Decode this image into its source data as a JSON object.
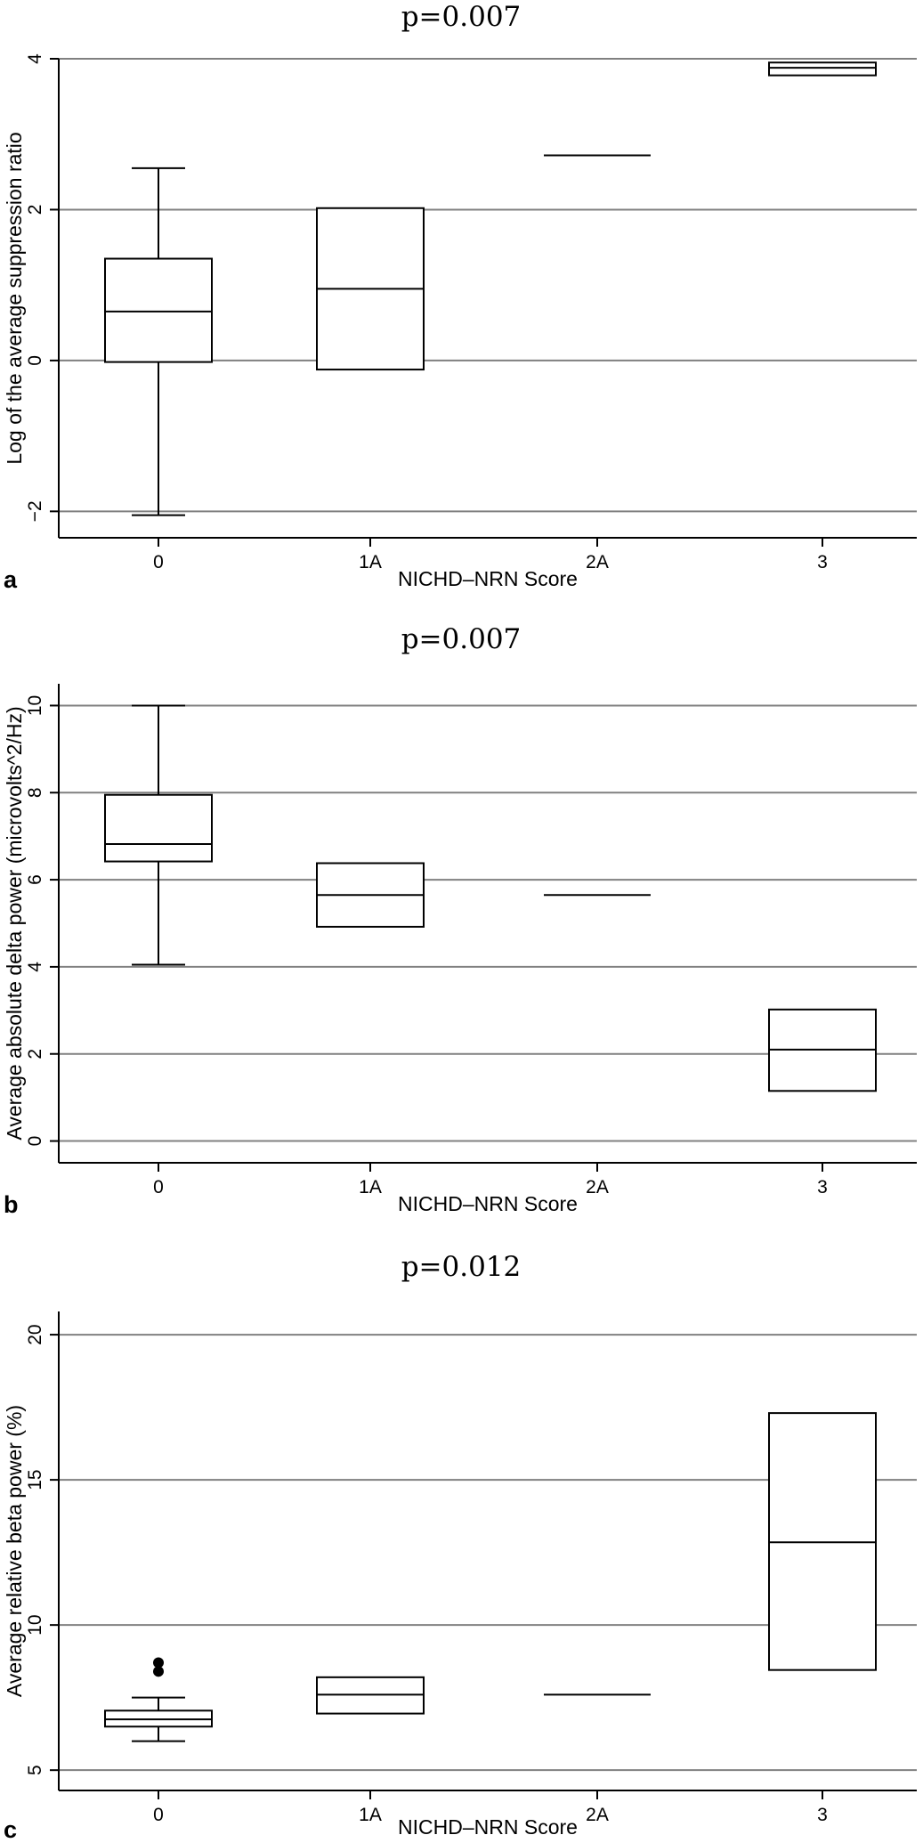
{
  "chart_data": [
    {
      "type": "box",
      "panel_label": "a",
      "title": "p=0.007",
      "xlabel": "NICHD–NRN Score",
      "ylabel": "Log of the average suppression ratio",
      "categories": [
        "0",
        "1A",
        "2A",
        "3"
      ],
      "ylim": [
        -2.35,
        4.0
      ],
      "yticks": [
        -2,
        0,
        2,
        4
      ],
      "ytick_labels": [
        "−2",
        "0",
        "2",
        "4"
      ],
      "grid": true,
      "boxes": [
        {
          "category": "0",
          "whisker_low": -2.05,
          "q1": -0.02,
          "median": 0.65,
          "q3": 1.35,
          "whisker_high": 2.55,
          "outliers": []
        },
        {
          "category": "1A",
          "whisker_low": -0.12,
          "q1": -0.12,
          "median": 0.95,
          "q3": 2.02,
          "whisker_high": 2.02,
          "outliers": []
        },
        {
          "category": "2A",
          "whisker_low": 2.72,
          "q1": 2.72,
          "median": 2.72,
          "q3": 2.72,
          "whisker_high": 2.72,
          "outliers": []
        },
        {
          "category": "3",
          "whisker_low": 3.78,
          "q1": 3.78,
          "median": 3.88,
          "q3": 3.95,
          "whisker_high": 3.95,
          "outliers": []
        }
      ]
    },
    {
      "type": "box",
      "panel_label": "b",
      "title": "p=0.007",
      "xlabel": "NICHD–NRN Score",
      "ylabel": "Average absolute delta power (microvolts^2/Hz)",
      "categories": [
        "0",
        "1A",
        "2A",
        "3"
      ],
      "ylim": [
        -0.5,
        10.5
      ],
      "yticks": [
        0,
        2,
        4,
        6,
        8,
        10
      ],
      "ytick_labels": [
        "0",
        "2",
        "4",
        "6",
        "8",
        "10"
      ],
      "grid": true,
      "boxes": [
        {
          "category": "0",
          "whisker_low": 4.05,
          "q1": 6.42,
          "median": 6.82,
          "q3": 7.95,
          "whisker_high": 10.0,
          "outliers": []
        },
        {
          "category": "1A",
          "whisker_low": 4.92,
          "q1": 4.92,
          "median": 5.65,
          "q3": 6.38,
          "whisker_high": 6.38,
          "outliers": []
        },
        {
          "category": "2A",
          "whisker_low": 5.65,
          "q1": 5.65,
          "median": 5.65,
          "q3": 5.65,
          "whisker_high": 5.65,
          "outliers": []
        },
        {
          "category": "3",
          "whisker_low": 1.15,
          "q1": 1.15,
          "median": 2.1,
          "q3": 3.02,
          "whisker_high": 3.02,
          "outliers": []
        }
      ]
    },
    {
      "type": "box",
      "panel_label": "c",
      "title": "p=0.012",
      "xlabel": "NICHD–NRN Score",
      "ylabel": "Average relative beta power (%)",
      "categories": [
        "0",
        "1A",
        "2A",
        "3"
      ],
      "ylim": [
        4.3,
        20.8
      ],
      "yticks": [
        5,
        10,
        15,
        20
      ],
      "ytick_labels": [
        "5",
        "10",
        "15",
        "20"
      ],
      "grid": true,
      "boxes": [
        {
          "category": "0",
          "whisker_low": 6.0,
          "q1": 6.5,
          "median": 6.75,
          "q3": 7.05,
          "whisker_high": 7.5,
          "outliers": [
            8.4,
            8.7
          ]
        },
        {
          "category": "1A",
          "whisker_low": 6.95,
          "q1": 6.95,
          "median": 7.6,
          "q3": 8.2,
          "whisker_high": 8.2,
          "outliers": []
        },
        {
          "category": "2A",
          "whisker_low": 7.6,
          "q1": 7.6,
          "median": 7.6,
          "q3": 7.6,
          "whisker_high": 7.6,
          "outliers": []
        },
        {
          "category": "3",
          "whisker_low": 8.45,
          "q1": 8.45,
          "median": 12.85,
          "q3": 17.3,
          "whisker_high": 17.3,
          "outliers": []
        }
      ]
    }
  ]
}
